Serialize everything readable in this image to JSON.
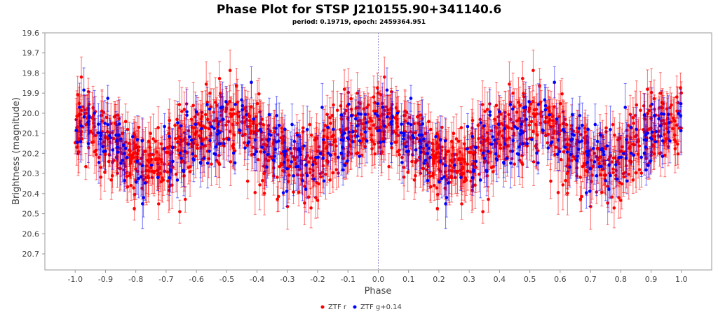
{
  "chart_data": {
    "type": "scatter",
    "title": "Phase Plot for STSP J210155.90+341140.6",
    "subtitle": "period: 0.19719, epoch: 2459364.951",
    "xlabel": "Phase",
    "ylabel": "Brightness (magnitude)",
    "xlim": [
      -1.1,
      1.1
    ],
    "ylim": [
      20.78,
      19.6
    ],
    "y_inverted": true,
    "xticks": [
      "-1.0",
      "-0.9",
      "-0.8",
      "-0.7",
      "-0.6",
      "-0.5",
      "-0.4",
      "-0.3",
      "-0.2",
      "-0.1",
      "0.0",
      "0.1",
      "0.2",
      "0.3",
      "0.4",
      "0.5",
      "0.6",
      "0.7",
      "0.8",
      "0.9",
      "1.0"
    ],
    "yticks": [
      "19.6",
      "19.7",
      "19.8",
      "19.9",
      "20.0",
      "20.1",
      "20.2",
      "20.3",
      "20.4",
      "20.5",
      "20.6",
      "20.7"
    ],
    "zero_line": 0.0,
    "legend_position": "bottom-center",
    "series": [
      {
        "name": "ZTF r",
        "color": "#ff0000",
        "error_bar_color": "#ff0000",
        "n_points": 700,
        "mean_mag": 20.15,
        "amplitude": 0.09,
        "scatter": 0.11,
        "typical_error": 0.09
      },
      {
        "name": "ZTF g+0.14",
        "color": "#0000ff",
        "error_bar_color": "#0000ff",
        "n_points": 220,
        "mean_mag": 20.15,
        "amplitude": 0.09,
        "scatter": 0.11,
        "typical_error": 0.09
      }
    ],
    "note_points_mirrored": "each point plotted at phase p and p-1"
  }
}
